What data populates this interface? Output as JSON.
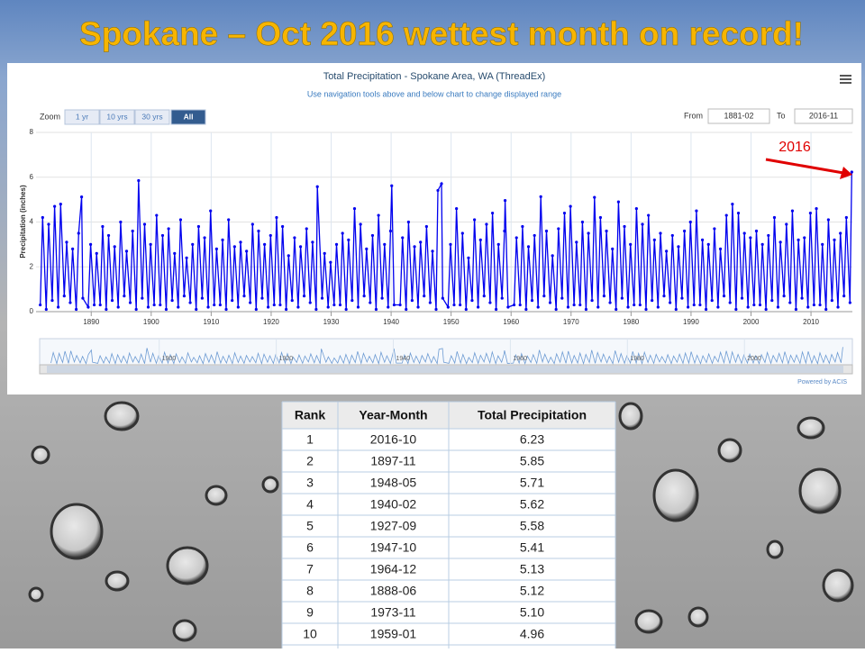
{
  "slide_title": "Spokane – Oct 2016 wettest month on record!",
  "chart_data": {
    "type": "line",
    "title": "Total Precipitation - Spokane Area, WA (ThreadEx)",
    "subtitle": "Use navigation tools above and below chart to change displayed range",
    "ylabel": "Precipitation (inches)",
    "xlim": [
      1880.8,
      2016.9
    ],
    "xticks": [
      1890,
      1900,
      1910,
      1920,
      1930,
      1940,
      1950,
      1960,
      1970,
      1980,
      1990,
      2000,
      2010
    ],
    "ylim": [
      0,
      8
    ],
    "yticks": [
      0,
      2,
      4,
      6,
      8
    ],
    "grid": true,
    "navigator_xticks": [
      1900,
      1920,
      1940,
      1960,
      1980,
      2000
    ],
    "annotation": "2016",
    "series": [
      {
        "color": "#0000ee",
        "x": [
          1881.5,
          1881.9,
          1882.5,
          1882.9,
          1883.5,
          1883.9,
          1884.5,
          1884.9,
          1885.5,
          1885.9,
          1886.5,
          1886.9,
          1887.5,
          1887.9,
          1888.4,
          1888.6,
          1889.5,
          1889.9,
          1890.5,
          1890.9,
          1891.5,
          1891.9,
          1892.5,
          1892.9,
          1893.5,
          1893.9,
          1894.5,
          1894.9,
          1895.5,
          1895.9,
          1896.5,
          1896.9,
          1897.5,
          1897.9,
          1898.5,
          1898.9,
          1899.5,
          1899.9,
          1900.5,
          1900.9,
          1901.5,
          1901.9,
          1902.5,
          1902.9,
          1903.5,
          1903.9,
          1904.5,
          1904.9,
          1905.5,
          1905.9,
          1906.5,
          1906.9,
          1907.5,
          1907.9,
          1908.5,
          1908.9,
          1909.5,
          1909.9,
          1910.5,
          1910.9,
          1911.5,
          1911.9,
          1912.5,
          1912.9,
          1913.5,
          1913.9,
          1914.5,
          1914.9,
          1915.5,
          1915.9,
          1916.5,
          1916.9,
          1917.5,
          1917.9,
          1918.5,
          1918.9,
          1919.5,
          1919.9,
          1920.5,
          1920.9,
          1921.5,
          1921.9,
          1922.5,
          1922.9,
          1923.5,
          1923.9,
          1924.5,
          1924.9,
          1925.5,
          1925.9,
          1926.5,
          1926.9,
          1927.5,
          1927.7,
          1928.5,
          1928.9,
          1929.5,
          1929.9,
          1930.5,
          1930.9,
          1931.5,
          1931.9,
          1932.5,
          1932.9,
          1933.5,
          1933.9,
          1934.5,
          1934.9,
          1935.5,
          1935.9,
          1936.5,
          1936.9,
          1937.5,
          1937.9,
          1938.5,
          1938.9,
          1939.5,
          1939.9,
          1940.1,
          1940.5,
          1941.5,
          1941.9,
          1942.5,
          1942.9,
          1943.5,
          1943.9,
          1944.5,
          1944.9,
          1945.5,
          1945.9,
          1946.5,
          1946.9,
          1947.5,
          1947.8,
          1948.4,
          1948.6,
          1949.5,
          1949.9,
          1950.5,
          1950.9,
          1951.5,
          1951.9,
          1952.5,
          1952.9,
          1953.5,
          1953.9,
          1954.5,
          1954.9,
          1955.5,
          1955.9,
          1956.5,
          1956.9,
          1957.5,
          1957.9,
          1958.5,
          1958.9,
          1959.0,
          1959.5,
          1960.5,
          1960.9,
          1961.5,
          1961.9,
          1962.5,
          1962.9,
          1963.5,
          1963.9,
          1964.5,
          1964.95,
          1965.5,
          1965.9,
          1966.5,
          1966.9,
          1967.5,
          1967.9,
          1968.5,
          1968.9,
          1969.5,
          1969.9,
          1970.5,
          1970.9,
          1971.5,
          1971.9,
          1972.5,
          1972.9,
          1973.5,
          1973.9,
          1974.5,
          1974.9,
          1975.5,
          1975.9,
          1976.5,
          1976.9,
          1977.5,
          1977.9,
          1978.5,
          1978.9,
          1979.5,
          1979.9,
          1980.5,
          1980.9,
          1981.5,
          1981.9,
          1982.5,
          1982.9,
          1983.5,
          1983.9,
          1984.5,
          1984.9,
          1985.5,
          1985.9,
          1986.5,
          1986.9,
          1987.5,
          1987.9,
          1988.5,
          1988.9,
          1989.5,
          1989.9,
          1990.5,
          1990.9,
          1991.5,
          1991.9,
          1992.5,
          1992.9,
          1993.5,
          1993.9,
          1994.5,
          1994.9,
          1995.5,
          1995.9,
          1996.5,
          1996.9,
          1997.5,
          1997.9,
          1998.5,
          1998.9,
          1999.5,
          1999.9,
          2000.5,
          2000.9,
          2001.5,
          2001.9,
          2002.5,
          2002.9,
          2003.5,
          2003.9,
          2004.5,
          2004.9,
          2005.5,
          2005.9,
          2006.5,
          2006.9,
          2007.5,
          2007.9,
          2008.5,
          2008.9,
          2009.5,
          2009.9,
          2010.5,
          2010.9,
          2011.5,
          2011.9,
          2012.5,
          2012.9,
          2013.5,
          2013.9,
          2014.5,
          2014.9,
          2015.5,
          2015.9,
          2016.5,
          2016.8
        ],
        "values": [
          0.3,
          4.2,
          0.1,
          3.9,
          0.5,
          4.7,
          0.2,
          4.8,
          0.7,
          3.1,
          0.4,
          2.8,
          0.1,
          3.5,
          5.12,
          0.6,
          0.2,
          3.0,
          0.3,
          2.6,
          0.3,
          3.8,
          0.1,
          3.4,
          0.5,
          2.9,
          0.2,
          4.0,
          0.7,
          2.7,
          0.4,
          3.6,
          0.1,
          5.85,
          0.6,
          3.9,
          0.2,
          3.0,
          0.3,
          4.3,
          0.3,
          3.4,
          0.1,
          3.7,
          0.5,
          2.6,
          0.2,
          4.1,
          0.7,
          2.4,
          0.4,
          3.0,
          0.1,
          3.8,
          0.6,
          3.3,
          0.2,
          4.5,
          0.3,
          2.8,
          0.3,
          3.2,
          0.1,
          4.1,
          0.5,
          2.9,
          0.2,
          3.1,
          0.7,
          2.7,
          0.4,
          3.9,
          0.1,
          3.6,
          0.6,
          3.0,
          0.2,
          3.4,
          0.3,
          4.2,
          0.3,
          3.8,
          0.1,
          2.5,
          0.5,
          3.3,
          0.2,
          2.9,
          0.7,
          3.7,
          0.4,
          3.1,
          0.1,
          5.58,
          0.6,
          2.6,
          0.2,
          2.2,
          0.3,
          3.0,
          0.3,
          3.5,
          0.1,
          3.2,
          0.5,
          4.6,
          0.2,
          3.9,
          0.7,
          2.8,
          0.4,
          3.4,
          0.1,
          4.3,
          0.6,
          3.0,
          0.2,
          3.6,
          5.62,
          0.3,
          0.3,
          3.3,
          0.1,
          4.0,
          0.5,
          2.9,
          0.2,
          3.1,
          0.7,
          3.8,
          0.4,
          2.7,
          0.1,
          5.41,
          5.71,
          0.6,
          0.2,
          3.0,
          0.3,
          4.6,
          0.3,
          3.5,
          0.1,
          2.4,
          0.5,
          4.1,
          0.2,
          3.2,
          0.7,
          3.9,
          0.4,
          4.4,
          0.1,
          3.0,
          0.6,
          3.6,
          4.96,
          0.2,
          0.3,
          3.3,
          0.3,
          3.8,
          0.1,
          2.9,
          0.5,
          3.4,
          0.2,
          5.13,
          0.7,
          3.6,
          0.4,
          2.5,
          0.1,
          3.7,
          0.6,
          4.4,
          0.2,
          4.7,
          0.3,
          3.1,
          0.3,
          4.0,
          0.1,
          3.5,
          0.5,
          5.1,
          0.2,
          4.2,
          0.7,
          3.6,
          0.4,
          2.8,
          0.1,
          4.9,
          0.6,
          3.8,
          0.2,
          3.0,
          0.3,
          4.6,
          0.3,
          3.9,
          0.1,
          4.3,
          0.5,
          3.2,
          0.2,
          3.5,
          0.7,
          2.7,
          0.4,
          3.4,
          0.1,
          2.9,
          0.6,
          3.6,
          0.2,
          4.0,
          0.3,
          4.5,
          0.3,
          3.2,
          0.1,
          3.0,
          0.5,
          3.7,
          0.2,
          2.8,
          0.7,
          4.3,
          0.4,
          4.8,
          0.1,
          4.4,
          0.6,
          3.5,
          0.2,
          3.3,
          0.3,
          3.6,
          0.3,
          3.0,
          0.1,
          3.4,
          0.5,
          4.2,
          0.2,
          3.1,
          0.7,
          3.9,
          0.4,
          4.5,
          0.1,
          3.2,
          0.6,
          3.3,
          0.2,
          4.4,
          0.3,
          4.6,
          0.3,
          3.0,
          0.1,
          4.1,
          0.5,
          3.2,
          0.2,
          3.5,
          0.7,
          4.2,
          0.4,
          6.23
        ]
      }
    ]
  },
  "controls": {
    "zoom_label": "Zoom",
    "zoom_buttons": [
      "1 yr",
      "10 yrs",
      "30 yrs",
      "All"
    ],
    "from_label": "From",
    "from_value": "1881-02",
    "to_label": "To",
    "to_value": "2016-11",
    "credit": "Powered by ACIS"
  },
  "table": {
    "headers": [
      "Rank",
      "Year-Month",
      "Total Precipitation"
    ],
    "rows": [
      [
        "1",
        "2016-10",
        "6.23"
      ],
      [
        "2",
        "1897-11",
        "5.85"
      ],
      [
        "3",
        "1948-05",
        "5.71"
      ],
      [
        "4",
        "1940-02",
        "5.62"
      ],
      [
        "5",
        "1927-09",
        "5.58"
      ],
      [
        "6",
        "1947-10",
        "5.41"
      ],
      [
        "7",
        "1964-12",
        "5.13"
      ],
      [
        "8",
        "1888-06",
        "5.12"
      ],
      [
        "9",
        "1973-11",
        "5.10"
      ],
      [
        "10",
        "1959-01",
        "4.96"
      ]
    ]
  }
}
